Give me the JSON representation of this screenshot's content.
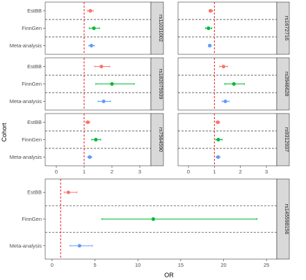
{
  "chart_data": {
    "type": "forest",
    "x_axis_title": "OR",
    "y_axis_title": "Cohort",
    "reference_line": 1,
    "cohorts": [
      "EstBB",
      "FinnGen",
      "Meta-analysis"
    ],
    "colors": {
      "EstBB": "#f8766d",
      "FinnGen": "#00ba38",
      "Meta-analysis": "#619cff"
    },
    "strip_bg": "#d9d9d9",
    "ref_line_color": "#e41a1c",
    "grid": false,
    "small_axis": {
      "xlim": [
        -0.4,
        3.4
      ],
      "ticks": [
        0,
        1,
        2,
        3
      ]
    },
    "large_axis": {
      "xlim": [
        -0.8,
        26.2
      ],
      "ticks": [
        0,
        5,
        10,
        15,
        20,
        25
      ]
    },
    "panels": [
      {
        "snp": "rs11031002",
        "rows": [
          {
            "cohort": "EstBB",
            "or": 1.22,
            "lo": 1.12,
            "hi": 1.33
          },
          {
            "cohort": "FinnGen",
            "or": 1.35,
            "lo": 1.18,
            "hi": 1.55
          },
          {
            "cohort": "Meta-analysis",
            "or": 1.26,
            "lo": 1.17,
            "hi": 1.36
          }
        ]
      },
      {
        "snp": "rs1672716",
        "rows": [
          {
            "cohort": "EstBB",
            "or": 0.85,
            "lo": 0.79,
            "hi": 0.93
          },
          {
            "cohort": "FinnGen",
            "or": 0.77,
            "lo": 0.66,
            "hi": 0.9
          },
          {
            "cohort": "Meta-analysis",
            "or": 0.82,
            "lo": 0.77,
            "hi": 0.88
          }
        ]
      },
      {
        "snp": "rs182075939",
        "rows": [
          {
            "cohort": "EstBB",
            "or": 1.62,
            "lo": 1.38,
            "hi": 1.92
          },
          {
            "cohort": "FinnGen",
            "or": 2.0,
            "lo": 1.42,
            "hi": 2.8
          },
          {
            "cohort": "Meta-analysis",
            "or": 1.7,
            "lo": 1.5,
            "hi": 1.95
          }
        ]
      },
      {
        "snp": "rs3946628",
        "rows": [
          {
            "cohort": "EstBB",
            "or": 1.35,
            "lo": 1.2,
            "hi": 1.5
          },
          {
            "cohort": "FinnGen",
            "or": 1.75,
            "lo": 1.4,
            "hi": 2.15
          },
          {
            "cohort": "Meta-analysis",
            "or": 1.42,
            "lo": 1.3,
            "hi": 1.56
          }
        ]
      },
      {
        "snp": "rs7564590",
        "rows": [
          {
            "cohort": "EstBB",
            "or": 1.13,
            "lo": 1.06,
            "hi": 1.2
          },
          {
            "cohort": "FinnGen",
            "or": 1.42,
            "lo": 1.27,
            "hi": 1.6
          },
          {
            "cohort": "Meta-analysis",
            "or": 1.2,
            "lo": 1.13,
            "hi": 1.27
          }
        ]
      },
      {
        "snp": "rs9312937",
        "rows": [
          {
            "cohort": "EstBB",
            "or": 1.13,
            "lo": 1.06,
            "hi": 1.2
          },
          {
            "cohort": "FinnGen",
            "or": 1.15,
            "lo": 1.05,
            "hi": 1.3
          },
          {
            "cohort": "Meta-analysis",
            "or": 1.14,
            "lo": 1.07,
            "hi": 1.21
          }
        ]
      },
      {
        "snp": "rs145598156",
        "rows": [
          {
            "cohort": "EstBB",
            "or": 1.9,
            "lo": 1.4,
            "hi": 2.9
          },
          {
            "cohort": "FinnGen",
            "or": 11.8,
            "lo": 5.8,
            "hi": 23.9
          },
          {
            "cohort": "Meta-analysis",
            "or": 3.2,
            "lo": 2.1,
            "hi": 4.7
          }
        ]
      }
    ]
  }
}
